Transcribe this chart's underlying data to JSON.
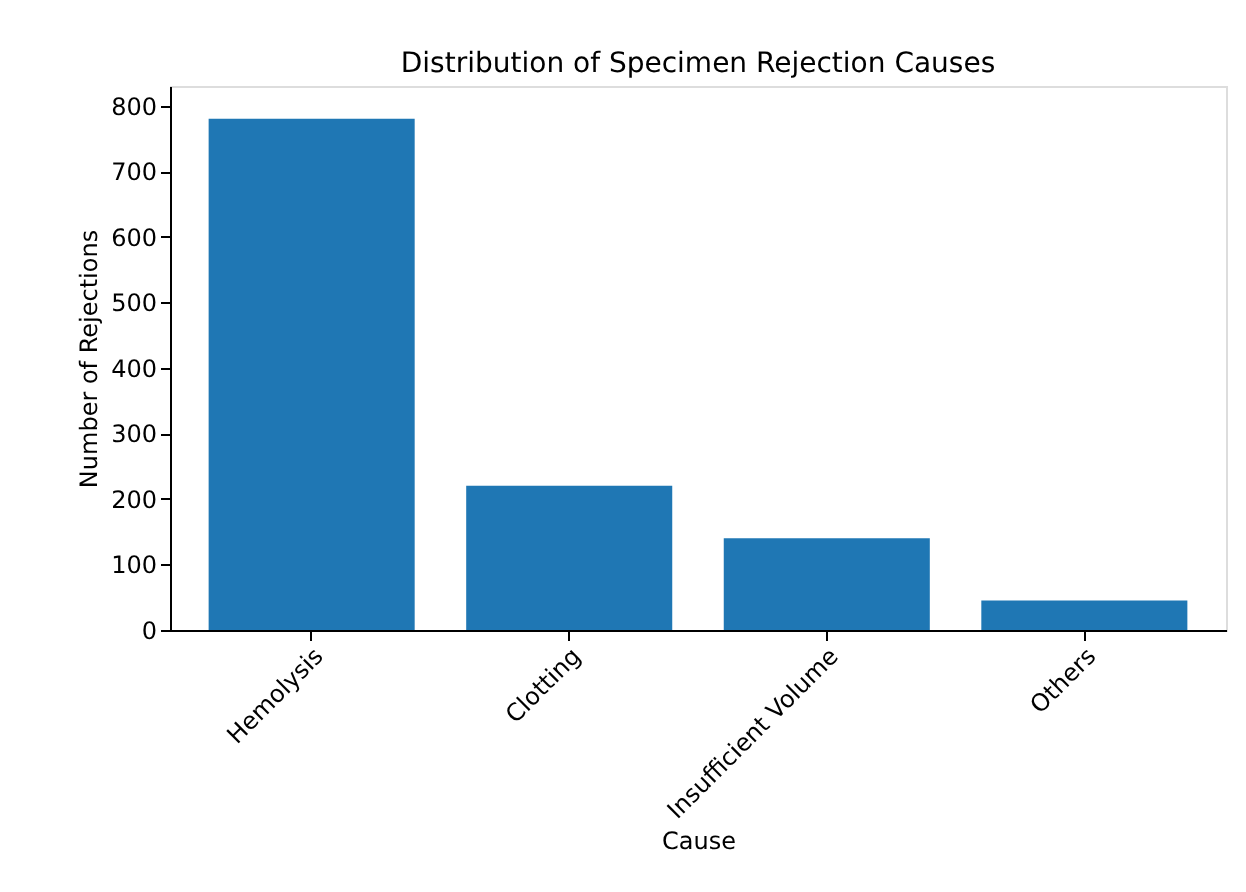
{
  "chart_data": {
    "type": "bar",
    "title": "Distribution of Specimen Rejection Causes",
    "xlabel": "Cause",
    "ylabel": "Number of Rejections",
    "categories": [
      "Hemolysis",
      "Clotting",
      "Insufficient Volume",
      "Others"
    ],
    "values": [
      780,
      220,
      140,
      45
    ],
    "color": "#1f77b4",
    "ylim": [
      0,
      830
    ],
    "yticks": [
      0,
      100,
      200,
      300,
      400,
      500,
      600,
      700,
      800
    ],
    "grid": false
  }
}
